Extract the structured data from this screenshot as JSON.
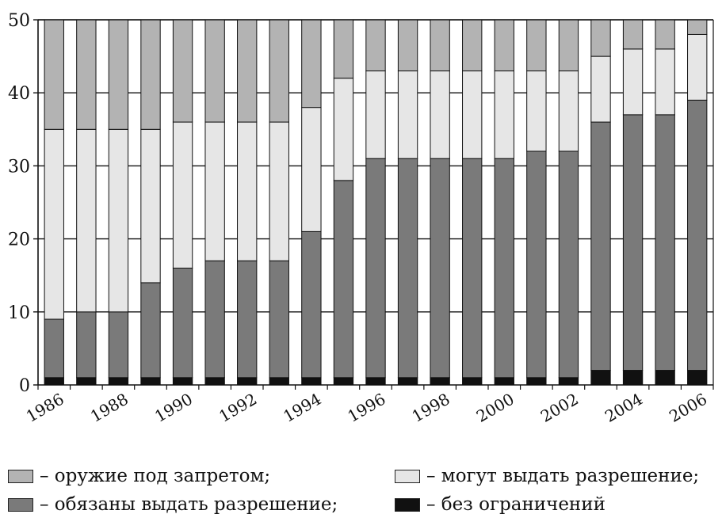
{
  "chart_data": {
    "type": "bar",
    "stacked": true,
    "years": [
      1986,
      1987,
      1988,
      1989,
      1990,
      1991,
      1992,
      1993,
      1994,
      1995,
      1996,
      1997,
      1998,
      1999,
      2000,
      2001,
      2002,
      2003,
      2004,
      2005,
      2006
    ],
    "x_tick_labels": [
      "1986",
      "1988",
      "1990",
      "1992",
      "1994",
      "1996",
      "1998",
      "2000",
      "2002",
      "2004",
      "2006"
    ],
    "y_ticks": [
      0,
      10,
      20,
      30,
      40,
      50
    ],
    "ylim": [
      0,
      50
    ],
    "grid": "horizontal",
    "series": [
      {
        "name": "без ограничений",
        "color": "#111111",
        "values": [
          1,
          1,
          1,
          1,
          1,
          1,
          1,
          1,
          1,
          1,
          1,
          1,
          1,
          1,
          1,
          1,
          1,
          2,
          2,
          2,
          2
        ]
      },
      {
        "name": "обязаны выдать разрешение",
        "color": "#7a7a7a",
        "values": [
          8,
          9,
          9,
          13,
          15,
          16,
          16,
          16,
          20,
          27,
          30,
          30,
          30,
          30,
          30,
          31,
          31,
          34,
          35,
          35,
          37
        ]
      },
      {
        "name": "могут выдать разрешение",
        "color": "#e6e6e6",
        "values": [
          26,
          25,
          25,
          21,
          20,
          19,
          19,
          19,
          17,
          14,
          12,
          12,
          12,
          12,
          12,
          11,
          11,
          9,
          9,
          9,
          9
        ]
      },
      {
        "name": "оружие под запретом",
        "color": "#b3b3b3",
        "values": [
          15,
          15,
          15,
          15,
          14,
          14,
          14,
          14,
          12,
          8,
          7,
          7,
          7,
          7,
          7,
          7,
          7,
          5,
          4,
          4,
          2
        ]
      }
    ]
  },
  "legend": {
    "banned": "– оружие под запретом;",
    "may_issue": "– могут выдать разрешение;",
    "shall_issue": "– обязаны выдать разрешение;",
    "unrestricted": "– без ограничений",
    "colors": {
      "banned": "#b3b3b3",
      "may_issue": "#e6e6e6",
      "shall_issue": "#7a7a7a",
      "unrestricted": "#111111"
    }
  }
}
